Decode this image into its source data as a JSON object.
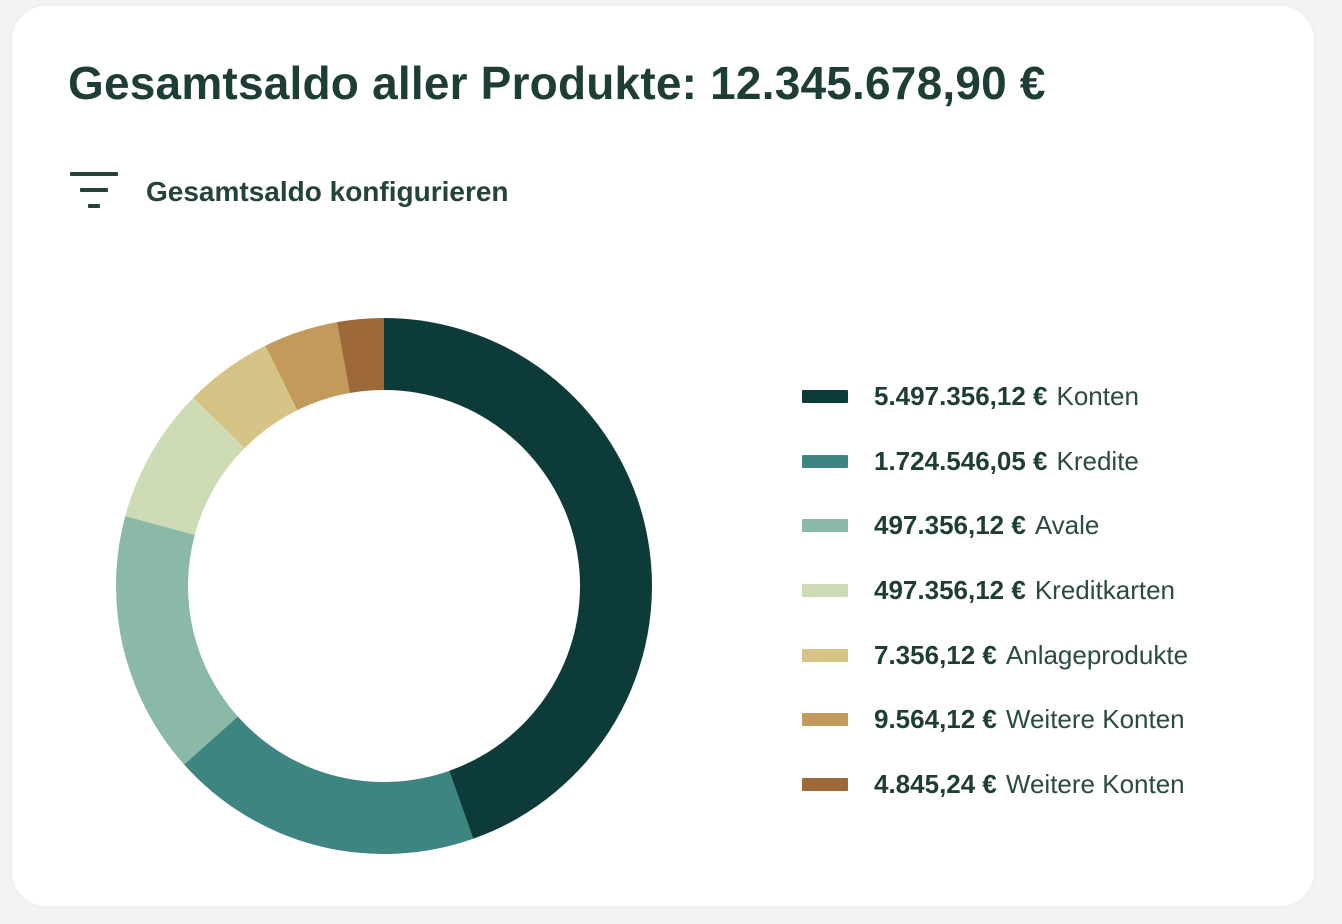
{
  "header": {
    "title": "Gesamtsaldo aller Produkte: 12.345.678,90 €",
    "config_label": "Gesamtsaldo konfigurieren",
    "config_icon": "filter-icon"
  },
  "chart_data": {
    "type": "pie",
    "variant": "donut",
    "legend_position": "right",
    "slices": [
      {
        "value_label": "5.497.356,12 €",
        "label": "Konten",
        "share": 0.446,
        "color": "#0d3b3a"
      },
      {
        "value_label": "1.724.546,05 €",
        "label": "Kredite",
        "share": 0.188,
        "color": "#3e8581"
      },
      {
        "value_label": "497.356,12 €",
        "label": "Avale",
        "share": 0.158,
        "color": "#8ab9a7"
      },
      {
        "value_label": "497.356,12 €",
        "label": "Kreditkarten",
        "share": 0.082,
        "color": "#cddcb4"
      },
      {
        "value_label": "7.356,12 €",
        "label": "Anlageprodukte",
        "share": 0.053,
        "color": "#d6c486"
      },
      {
        "value_label": "9.564,12 €",
        "label": "Weitere Konten",
        "share": 0.045,
        "color": "#c29a5c"
      },
      {
        "value_label": "4.845,24 €",
        "label": "Weitere Konten",
        "share": 0.028,
        "color": "#9e6939"
      }
    ]
  }
}
